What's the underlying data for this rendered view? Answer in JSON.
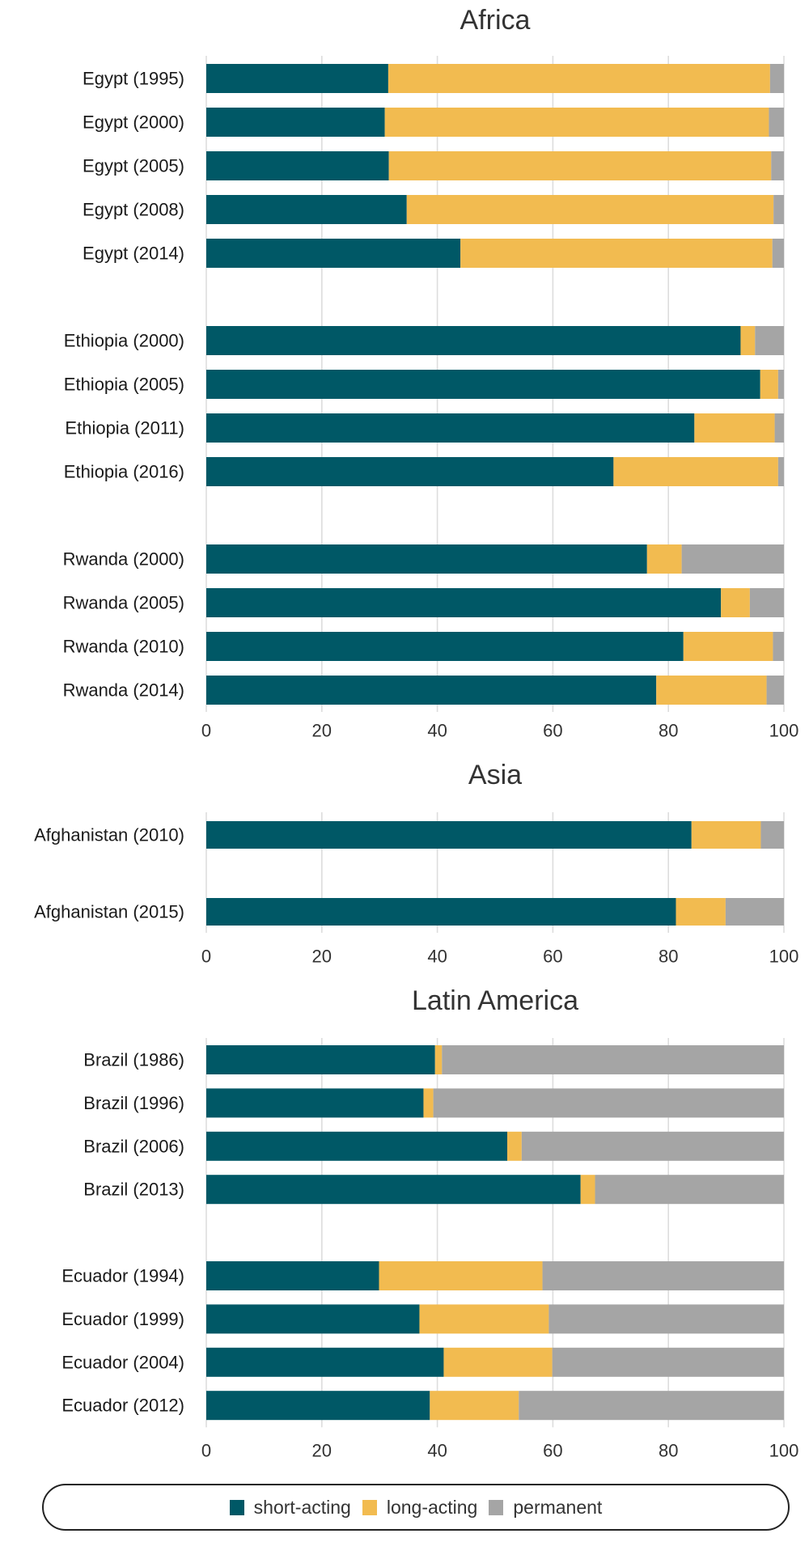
{
  "chart_data": {
    "type": "bar",
    "orientation": "horizontal",
    "stacked": true,
    "xlim": [
      0,
      100
    ],
    "xticks": [
      0,
      20,
      40,
      60,
      80,
      100
    ],
    "grid": true,
    "legend_position": "bottom",
    "series_meta": [
      {
        "key": "short",
        "name": "short-acting",
        "color": "#005866"
      },
      {
        "key": "long",
        "name": "long-acting",
        "color": "#F2BB50"
      },
      {
        "key": "perm",
        "name": "permanent",
        "color": "#A5A5A5"
      }
    ],
    "panels": [
      {
        "title": "Africa",
        "groups": [
          [
            {
              "label": "Egypt (1995)",
              "short": 31.5,
              "long": 66.1,
              "perm": 2.4
            },
            {
              "label": "Egypt (2000)",
              "short": 30.9,
              "long": 66.5,
              "perm": 2.6
            },
            {
              "label": "Egypt (2005)",
              "short": 31.6,
              "long": 66.2,
              "perm": 2.2
            },
            {
              "label": "Egypt (2008)",
              "short": 34.7,
              "long": 63.5,
              "perm": 1.8
            },
            {
              "label": "Egypt (2014)",
              "short": 44.0,
              "long": 54.0,
              "perm": 2.0
            }
          ],
          [
            {
              "label": "Ethiopia (2000)",
              "short": 92.5,
              "long": 2.5,
              "perm": 5.0
            },
            {
              "label": "Ethiopia (2005)",
              "short": 95.9,
              "long": 3.1,
              "perm": 1.0
            },
            {
              "label": "Ethiopia (2011)",
              "short": 84.5,
              "long": 13.9,
              "perm": 1.6
            },
            {
              "label": "Ethiopia (2016)",
              "short": 70.5,
              "long": 28.5,
              "perm": 1.0
            }
          ],
          [
            {
              "label": "Rwanda (2000)",
              "short": 76.3,
              "long": 6.0,
              "perm": 17.7
            },
            {
              "label": "Rwanda (2005)",
              "short": 89.1,
              "long": 5.0,
              "perm": 5.9
            },
            {
              "label": "Rwanda (2010)",
              "short": 82.6,
              "long": 15.5,
              "perm": 1.9
            },
            {
              "label": "Rwanda (2014)",
              "short": 77.9,
              "long": 19.1,
              "perm": 3.0
            }
          ]
        ]
      },
      {
        "title": "Asia",
        "groups": [
          [
            {
              "label": "Afghanistan (2010)",
              "short": 84.0,
              "long": 12.0,
              "perm": 4.0
            }
          ],
          [
            {
              "label": "Afghanistan (2015)",
              "short": 81.3,
              "long": 8.6,
              "perm": 10.1
            }
          ]
        ]
      },
      {
        "title": "Latin America",
        "groups": [
          [
            {
              "label": "Brazil (1986)",
              "short": 39.6,
              "long": 1.2,
              "perm": 59.2
            },
            {
              "label": "Brazil (1996)",
              "short": 37.6,
              "long": 1.7,
              "perm": 60.7
            },
            {
              "label": "Brazil (2006)",
              "short": 52.1,
              "long": 2.5,
              "perm": 45.4
            },
            {
              "label": "Brazil (2013)",
              "short": 64.8,
              "long": 2.5,
              "perm": 32.7
            }
          ],
          [
            {
              "label": "Ecuador (1994)",
              "short": 29.9,
              "long": 28.3,
              "perm": 41.8
            },
            {
              "label": "Ecuador (1999)",
              "short": 36.9,
              "long": 22.4,
              "perm": 40.7
            },
            {
              "label": "Ecuador (2004)",
              "short": 41.1,
              "long": 18.8,
              "perm": 40.1
            },
            {
              "label": "Ecuador (2012)",
              "short": 38.7,
              "long": 15.4,
              "perm": 45.9
            }
          ]
        ]
      }
    ]
  },
  "legend": {
    "items": [
      {
        "label": "short-acting",
        "color": "#005866"
      },
      {
        "label": "long-acting",
        "color": "#F2BB50"
      },
      {
        "label": "permanent",
        "color": "#A5A5A5"
      }
    ]
  }
}
